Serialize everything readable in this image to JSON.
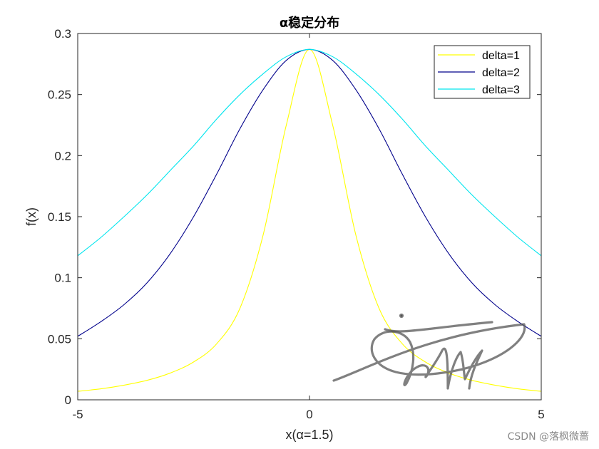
{
  "chart_data": {
    "type": "line",
    "title": "α稳定分布",
    "xlabel": "x(α=1.5)",
    "ylabel": "f(x)",
    "xlim": [
      -5,
      5
    ],
    "ylim": [
      0,
      0.3
    ],
    "xticks": [
      -5,
      0,
      5
    ],
    "yticks": [
      0,
      0.05,
      0.1,
      0.15,
      0.2,
      0.25,
      0.3
    ],
    "xtick_labels": [
      "-5",
      "0",
      "5"
    ],
    "ytick_labels": [
      "0",
      "0.05",
      "0.1",
      "0.15",
      "0.2",
      "0.25",
      "0.3"
    ],
    "grid": false,
    "legend_position": "top-right",
    "x": [
      -5,
      -4.5,
      -4,
      -3.5,
      -3,
      -2.5,
      -2,
      -1.5,
      -1,
      -0.5,
      0,
      0.5,
      1,
      1.5,
      2,
      2.5,
      3,
      3.5,
      4,
      4.5,
      5
    ],
    "series": [
      {
        "name": "delta=1",
        "color": "#ffff00",
        "values": [
          0.007,
          0.009,
          0.012,
          0.016,
          0.022,
          0.031,
          0.046,
          0.075,
          0.135,
          0.225,
          0.287,
          0.225,
          0.135,
          0.075,
          0.046,
          0.031,
          0.022,
          0.016,
          0.012,
          0.009,
          0.007
        ]
      },
      {
        "name": "delta=2",
        "color": "#00008b",
        "values": [
          0.052,
          0.064,
          0.078,
          0.096,
          0.12,
          0.15,
          0.185,
          0.222,
          0.254,
          0.278,
          0.287,
          0.278,
          0.254,
          0.222,
          0.185,
          0.15,
          0.12,
          0.096,
          0.078,
          0.064,
          0.052
        ]
      },
      {
        "name": "delta=3",
        "color": "#00e5ee",
        "values": [
          0.118,
          0.133,
          0.15,
          0.168,
          0.188,
          0.208,
          0.23,
          0.25,
          0.267,
          0.281,
          0.287,
          0.281,
          0.267,
          0.25,
          0.23,
          0.208,
          0.188,
          0.168,
          0.15,
          0.133,
          0.118
        ]
      }
    ]
  },
  "watermark": "CSDN @落枫微蔷",
  "colors": {
    "axis": "#262626",
    "signature_ink": "#555555"
  },
  "decorations": {
    "signature": "handwritten signature scribble"
  }
}
